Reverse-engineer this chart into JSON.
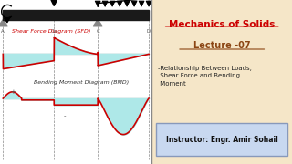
{
  "bg_color": "#f5e6c8",
  "left_panel_bg": "#ffffff",
  "right_panel_bg": "#f5e6c8",
  "title": "Mechanics of Solids",
  "title_color": "#cc0000",
  "lecture": "Lecture -07",
  "lecture_color": "#8b4513",
  "bullet_text": "-Relationship Between Loads,\n Shear Force and Bending\n Moment",
  "instructor": "Instructor: Engr. Amir Sohail",
  "instructor_box_color": "#c8d8f0",
  "sfd_label": "Shear Force Diagram (SFD)",
  "bmd_label": "Bending Moment Diagram (BMD)",
  "sfd_color": "#cc0000",
  "bmd_color": "#cc0000",
  "fill_color": "#aee8e8",
  "beam_color": "#1a1a1a",
  "grid_color": "#888888",
  "points_A": 0.0,
  "points_B": 0.35,
  "points_C": 0.65,
  "points_D": 1.0,
  "panel_split": 0.52
}
